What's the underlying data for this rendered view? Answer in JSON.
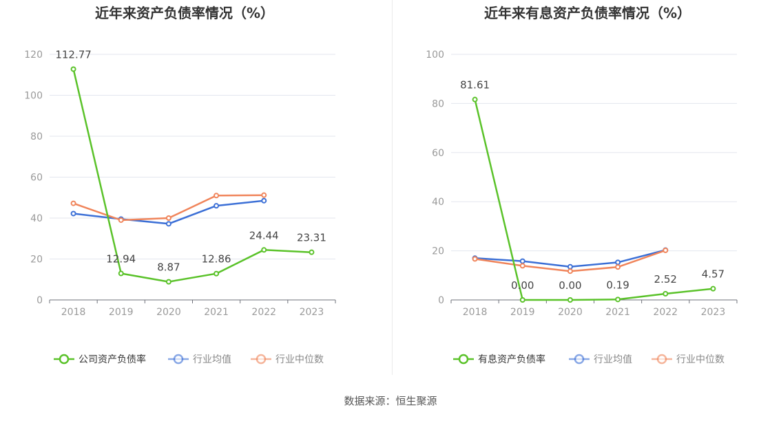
{
  "source_text": "数据来源：恒生聚源",
  "chart_data": [
    {
      "type": "line",
      "title": "近年来资产负债率情况（%）",
      "categories": [
        "2018",
        "2019",
        "2020",
        "2021",
        "2022",
        "2023"
      ],
      "ylim": [
        0,
        120
      ],
      "yticks": [
        0,
        20,
        40,
        60,
        80,
        100,
        120
      ],
      "grid": true,
      "legend_position": "bottom",
      "series": [
        {
          "name": "公司资产负债率",
          "color": "#5ac229",
          "labels": true,
          "values": [
            112.77,
            12.94,
            8.87,
            12.86,
            24.44,
            23.31
          ],
          "value_labels": [
            "112.77",
            "12.94",
            "8.87",
            "12.86",
            "24.44",
            "23.31"
          ]
        },
        {
          "name": "行业均值",
          "color": "#3b6fd6",
          "labels": false,
          "values": [
            42.2,
            39.5,
            37.2,
            46.0,
            48.5,
            null
          ]
        },
        {
          "name": "行业中位数",
          "color": "#f0845a",
          "labels": false,
          "values": [
            47.2,
            39.0,
            40.0,
            51.0,
            51.2,
            null
          ]
        }
      ]
    },
    {
      "type": "line",
      "title": "近年来有息资产负债率情况（%）",
      "categories": [
        "2018",
        "2019",
        "2020",
        "2021",
        "2022",
        "2023"
      ],
      "ylim": [
        0,
        100
      ],
      "yticks": [
        0,
        20,
        40,
        60,
        80,
        100
      ],
      "grid": true,
      "legend_position": "bottom",
      "series": [
        {
          "name": "有息资产负债率",
          "color": "#5ac229",
          "labels": true,
          "values": [
            81.61,
            0.0,
            0.0,
            0.19,
            2.52,
            4.57
          ],
          "value_labels": [
            "81.61",
            "0.00",
            "0.00",
            "0.19",
            "2.52",
            "4.57"
          ]
        },
        {
          "name": "行业均值",
          "color": "#3b6fd6",
          "labels": false,
          "values": [
            17.0,
            15.8,
            13.5,
            15.3,
            20.3,
            null
          ]
        },
        {
          "name": "行业中位数",
          "color": "#f0845a",
          "labels": false,
          "values": [
            16.7,
            13.9,
            11.7,
            13.4,
            20.2,
            null
          ]
        }
      ]
    }
  ]
}
